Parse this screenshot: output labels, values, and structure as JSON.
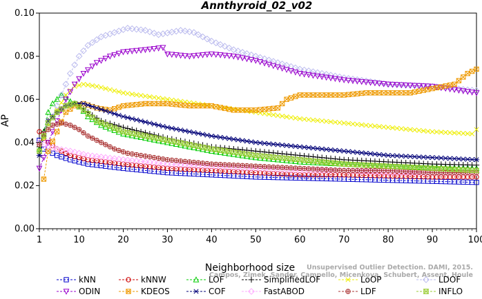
{
  "chart_data": {
    "type": "line",
    "title": "Annthyroid_02_v02",
    "xlabel": "Neighborhood size",
    "ylabel": "AP",
    "xlim": [
      1,
      100
    ],
    "ylim": [
      0,
      0.1
    ],
    "xticks": [
      "1",
      "10",
      "20",
      "30",
      "40",
      "50",
      "60",
      "70",
      "80",
      "90",
      "100"
    ],
    "yticks": [
      "0.00",
      "0.02",
      "0.04",
      "0.06",
      "0.08",
      "0.10"
    ],
    "grid": false,
    "legend_position": "bottom",
    "watermark": [
      "Unsupervised Outlier Detection. DAMI, 2015.",
      "Campos, Zimek, Sander, Campello, Micenkova, Schubert, Assent, Houle"
    ],
    "series": [
      {
        "name": "kNN",
        "color": "#0000cc",
        "marker": "square",
        "points": [
          [
            1,
            0.041
          ],
          [
            2,
            0.037
          ],
          [
            3,
            0.036
          ],
          [
            5,
            0.034
          ],
          [
            8,
            0.032
          ],
          [
            12,
            0.03
          ],
          [
            20,
            0.028
          ],
          [
            30,
            0.026
          ],
          [
            40,
            0.025
          ],
          [
            50,
            0.024
          ],
          [
            60,
            0.0235
          ],
          [
            70,
            0.023
          ],
          [
            80,
            0.0225
          ],
          [
            90,
            0.022
          ],
          [
            100,
            0.0215
          ]
        ]
      },
      {
        "name": "kNNW",
        "color": "#cc0000",
        "marker": "circle",
        "points": [
          [
            1,
            0.045
          ],
          [
            2,
            0.042
          ],
          [
            3,
            0.04
          ],
          [
            5,
            0.037
          ],
          [
            8,
            0.034
          ],
          [
            12,
            0.032
          ],
          [
            20,
            0.03
          ],
          [
            30,
            0.028
          ],
          [
            40,
            0.027
          ],
          [
            50,
            0.026
          ],
          [
            60,
            0.025
          ],
          [
            70,
            0.025
          ],
          [
            80,
            0.0245
          ],
          [
            90,
            0.024
          ],
          [
            100,
            0.024
          ]
        ]
      },
      {
        "name": "LOF",
        "color": "#00cc00",
        "marker": "triangle",
        "points": [
          [
            1,
            0.037
          ],
          [
            2,
            0.045
          ],
          [
            3,
            0.054
          ],
          [
            4,
            0.058
          ],
          [
            5,
            0.06
          ],
          [
            6,
            0.062
          ],
          [
            7,
            0.061
          ],
          [
            8,
            0.059
          ],
          [
            10,
            0.057
          ],
          [
            12,
            0.052
          ],
          [
            15,
            0.048
          ],
          [
            20,
            0.044
          ],
          [
            30,
            0.04
          ],
          [
            40,
            0.036
          ],
          [
            50,
            0.033
          ],
          [
            60,
            0.031
          ],
          [
            70,
            0.03
          ],
          [
            80,
            0.029
          ],
          [
            90,
            0.0285
          ],
          [
            100,
            0.028
          ]
        ]
      },
      {
        "name": "SimplifiedLOF",
        "color": "#000000",
        "marker": "plus",
        "points": [
          [
            1,
            0.038
          ],
          [
            2,
            0.045
          ],
          [
            3,
            0.05
          ],
          [
            5,
            0.054
          ],
          [
            7,
            0.057
          ],
          [
            9,
            0.058
          ],
          [
            10,
            0.057
          ],
          [
            12,
            0.054
          ],
          [
            15,
            0.05
          ],
          [
            20,
            0.047
          ],
          [
            30,
            0.042
          ],
          [
            40,
            0.038
          ],
          [
            50,
            0.036
          ],
          [
            60,
            0.034
          ],
          [
            70,
            0.032
          ],
          [
            80,
            0.031
          ],
          [
            90,
            0.03
          ],
          [
            100,
            0.0295
          ]
        ]
      },
      {
        "name": "LoOP",
        "color": "#eeee00",
        "marker": "x",
        "points": [
          [
            1,
            0.036
          ],
          [
            2,
            0.042
          ],
          [
            3,
            0.048
          ],
          [
            5,
            0.055
          ],
          [
            7,
            0.062
          ],
          [
            9,
            0.066
          ],
          [
            11,
            0.067
          ],
          [
            14,
            0.066
          ],
          [
            20,
            0.063
          ],
          [
            30,
            0.06
          ],
          [
            40,
            0.057
          ],
          [
            50,
            0.054
          ],
          [
            60,
            0.051
          ],
          [
            70,
            0.049
          ],
          [
            80,
            0.047
          ],
          [
            90,
            0.045
          ],
          [
            99,
            0.044
          ],
          [
            100,
            0.046
          ]
        ]
      },
      {
        "name": "LDOF",
        "color": "#bbbbee",
        "marker": "diamond",
        "points": [
          [
            1,
            0.04
          ],
          [
            2,
            0.044
          ],
          [
            4,
            0.052
          ],
          [
            6,
            0.062
          ],
          [
            8,
            0.072
          ],
          [
            10,
            0.08
          ],
          [
            12,
            0.085
          ],
          [
            15,
            0.089
          ],
          [
            18,
            0.091
          ],
          [
            21,
            0.093
          ],
          [
            25,
            0.092
          ],
          [
            28,
            0.09
          ],
          [
            33,
            0.092
          ],
          [
            36,
            0.091
          ],
          [
            40,
            0.087
          ],
          [
            45,
            0.083
          ],
          [
            50,
            0.08
          ],
          [
            55,
            0.077
          ],
          [
            60,
            0.074
          ],
          [
            70,
            0.07
          ],
          [
            80,
            0.067
          ],
          [
            90,
            0.066
          ],
          [
            100,
            0.064
          ]
        ]
      },
      {
        "name": "ODIN",
        "color": "#9900cc",
        "marker": "triangle-down",
        "points": [
          [
            1,
            0.028
          ],
          [
            2,
            0.033
          ],
          [
            3,
            0.04
          ],
          [
            5,
            0.05
          ],
          [
            7,
            0.06
          ],
          [
            9,
            0.067
          ],
          [
            11,
            0.072
          ],
          [
            14,
            0.077
          ],
          [
            17,
            0.08
          ],
          [
            20,
            0.082
          ],
          [
            25,
            0.083
          ],
          [
            29,
            0.084
          ],
          [
            30,
            0.081
          ],
          [
            35,
            0.08
          ],
          [
            40,
            0.081
          ],
          [
            45,
            0.08
          ],
          [
            50,
            0.078
          ],
          [
            55,
            0.075
          ],
          [
            60,
            0.072
          ],
          [
            70,
            0.069
          ],
          [
            80,
            0.067
          ],
          [
            90,
            0.066
          ],
          [
            100,
            0.063
          ]
        ]
      },
      {
        "name": "KDEOS",
        "color": "#ee9900",
        "marker": "square-x",
        "points": [
          [
            2,
            0.023
          ],
          [
            3,
            0.036
          ],
          [
            5,
            0.045
          ],
          [
            7,
            0.054
          ],
          [
            9,
            0.057
          ],
          [
            11,
            0.058
          ],
          [
            14,
            0.056
          ],
          [
            17,
            0.055
          ],
          [
            20,
            0.057
          ],
          [
            25,
            0.058
          ],
          [
            30,
            0.058
          ],
          [
            35,
            0.057
          ],
          [
            40,
            0.057
          ],
          [
            45,
            0.055
          ],
          [
            50,
            0.055
          ],
          [
            55,
            0.056
          ],
          [
            57,
            0.06
          ],
          [
            60,
            0.062
          ],
          [
            65,
            0.062
          ],
          [
            70,
            0.062
          ],
          [
            75,
            0.063
          ],
          [
            80,
            0.063
          ],
          [
            85,
            0.063
          ],
          [
            90,
            0.065
          ],
          [
            95,
            0.067
          ],
          [
            98,
            0.072
          ],
          [
            100,
            0.074
          ]
        ]
      },
      {
        "name": "COF",
        "color": "#000077",
        "marker": "asterisk",
        "points": [
          [
            1,
            0.034
          ],
          [
            2,
            0.043
          ],
          [
            3,
            0.05
          ],
          [
            5,
            0.054
          ],
          [
            7,
            0.057
          ],
          [
            9,
            0.058
          ],
          [
            11,
            0.058
          ],
          [
            14,
            0.056
          ],
          [
            20,
            0.052
          ],
          [
            30,
            0.047
          ],
          [
            40,
            0.043
          ],
          [
            50,
            0.04
          ],
          [
            60,
            0.038
          ],
          [
            70,
            0.036
          ],
          [
            80,
            0.034
          ],
          [
            90,
            0.033
          ],
          [
            100,
            0.032
          ]
        ]
      },
      {
        "name": "FastABOD",
        "color": "#ffaaff",
        "marker": "diamond",
        "points": [
          [
            1,
            0.04
          ],
          [
            3,
            0.038
          ],
          [
            5,
            0.037
          ],
          [
            8,
            0.036
          ],
          [
            12,
            0.034
          ],
          [
            20,
            0.032
          ],
          [
            30,
            0.03
          ],
          [
            40,
            0.029
          ],
          [
            50,
            0.028
          ],
          [
            60,
            0.027
          ],
          [
            70,
            0.027
          ],
          [
            80,
            0.026
          ],
          [
            90,
            0.026
          ],
          [
            100,
            0.026
          ]
        ]
      },
      {
        "name": "LDF",
        "color": "#aa3333",
        "marker": "circle-plus",
        "points": [
          [
            1,
            0.039
          ],
          [
            2,
            0.044
          ],
          [
            4,
            0.048
          ],
          [
            6,
            0.049
          ],
          [
            8,
            0.048
          ],
          [
            10,
            0.046
          ],
          [
            12,
            0.043
          ],
          [
            15,
            0.04
          ],
          [
            18,
            0.037
          ],
          [
            21,
            0.035
          ],
          [
            24,
            0.034
          ],
          [
            30,
            0.032
          ],
          [
            40,
            0.03
          ],
          [
            50,
            0.029
          ],
          [
            60,
            0.028
          ],
          [
            70,
            0.027
          ],
          [
            80,
            0.027
          ],
          [
            90,
            0.026
          ],
          [
            100,
            0.026
          ]
        ]
      },
      {
        "name": "INFLO",
        "color": "#99cc33",
        "marker": "hourglass",
        "points": [
          [
            1,
            0.036
          ],
          [
            2,
            0.043
          ],
          [
            3,
            0.049
          ],
          [
            5,
            0.054
          ],
          [
            7,
            0.057
          ],
          [
            9,
            0.058
          ],
          [
            11,
            0.055
          ],
          [
            14,
            0.05
          ],
          [
            20,
            0.045
          ],
          [
            30,
            0.041
          ],
          [
            40,
            0.037
          ],
          [
            50,
            0.034
          ],
          [
            60,
            0.032
          ],
          [
            70,
            0.03
          ],
          [
            80,
            0.029
          ],
          [
            90,
            0.028
          ],
          [
            100,
            0.027
          ]
        ]
      }
    ],
    "legend_order": [
      "kNN",
      "kNNW",
      "LOF",
      "SimplifiedLOF",
      "LoOP",
      "LDOF",
      "ODIN",
      "KDEOS",
      "COF",
      "FastABOD",
      "LDF",
      "INFLO"
    ]
  }
}
